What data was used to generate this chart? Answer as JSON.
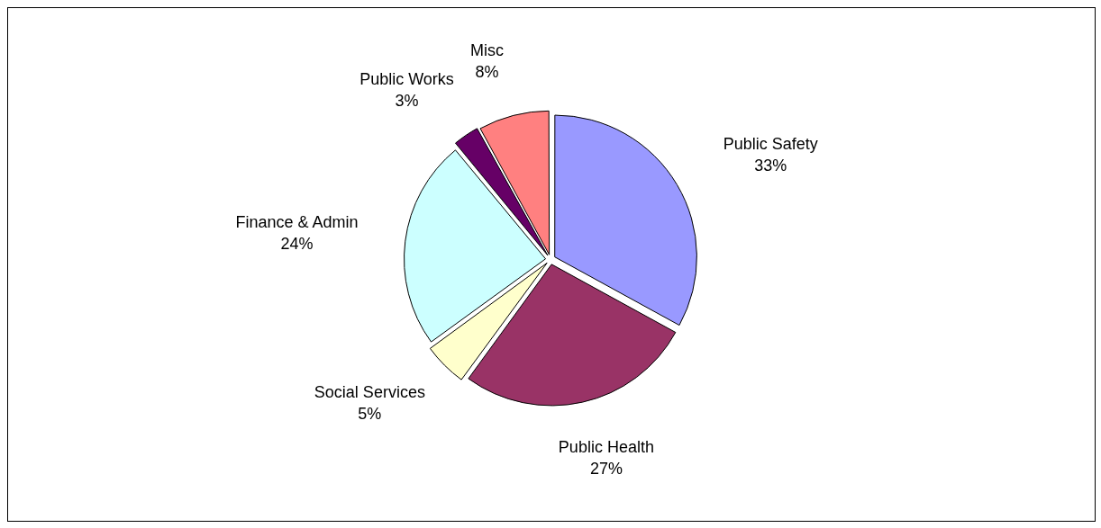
{
  "chart_data": {
    "type": "pie",
    "categories": [
      "Public Safety",
      "Public Health",
      "Social Services",
      "Finance & Admin",
      "Public Works",
      "Misc"
    ],
    "values": [
      33,
      27,
      5,
      24,
      3,
      8
    ],
    "value_labels": [
      "33%",
      "27%",
      "5%",
      "24%",
      "3%",
      "8%"
    ],
    "colors": [
      "#9999ff",
      "#993366",
      "#ffffcc",
      "#ccffff",
      "#660066",
      "#ff8080"
    ],
    "legend": false
  }
}
